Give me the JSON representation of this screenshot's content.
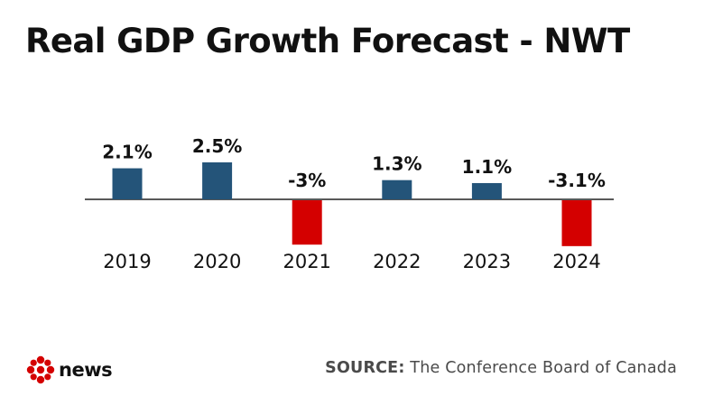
{
  "chart_data": {
    "type": "bar",
    "title": "Real GDP Growth Forecast - NWT",
    "categories": [
      "2019",
      "2020",
      "2021",
      "2022",
      "2023",
      "2024"
    ],
    "values": [
      2.1,
      2.5,
      -3,
      1.3,
      1.1,
      -3.1
    ],
    "value_labels": [
      "2.1%",
      "2.5%",
      "-3%",
      "1.3%",
      "1.1%",
      "-3.1%"
    ],
    "xlabel": "",
    "ylabel": "",
    "ylim": [
      -3.1,
      2.5
    ],
    "grid": false,
    "legend": "none",
    "colors": {
      "positive": "#245479",
      "negative": "#d40000",
      "baseline": "#222222"
    }
  },
  "footer": {
    "brand": "news",
    "source_label": "SOURCE:",
    "source_text": " The Conference Board of Canada"
  },
  "icons": {
    "logo": "cbc-gem-icon"
  }
}
